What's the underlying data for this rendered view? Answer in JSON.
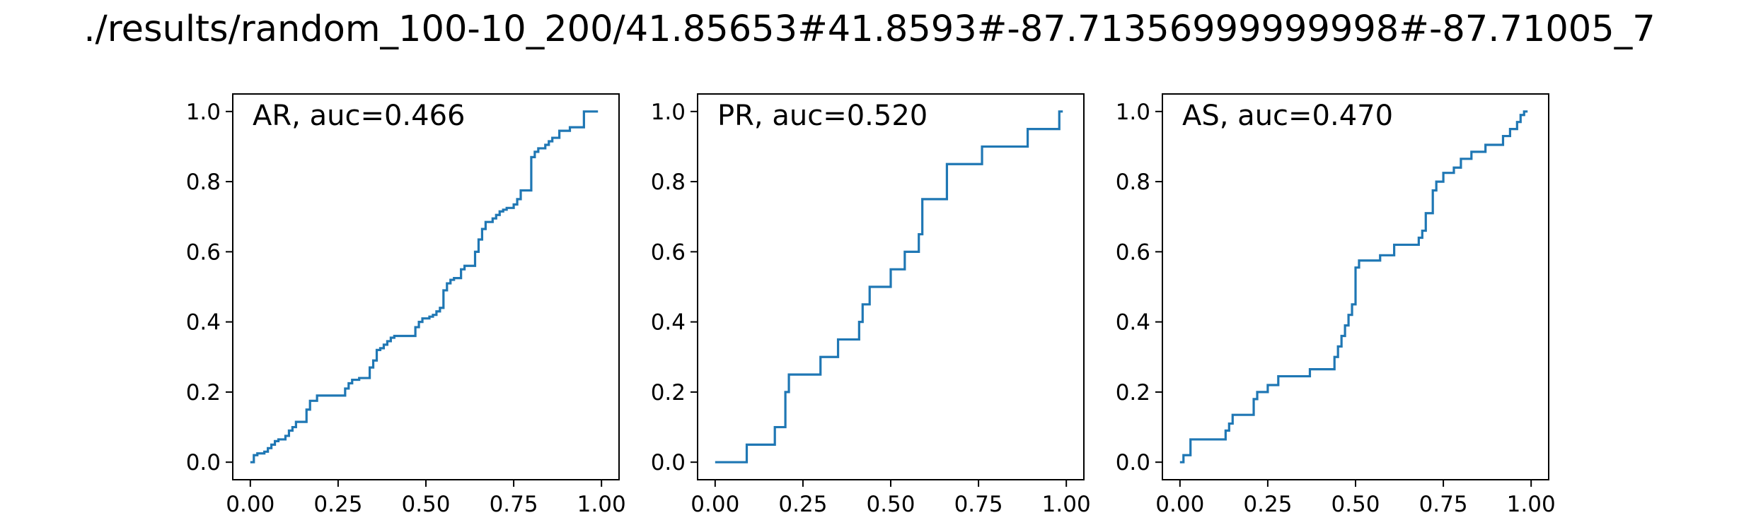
{
  "figure": {
    "suptitle": "./results/random_100-10_200/41.85653#41.8593#-87.71356999999998#-87.71005_7"
  },
  "style": {
    "line_color": "#1f77b4",
    "axes_color": "#000000",
    "background": "#ffffff"
  },
  "chart_data": [
    {
      "type": "line",
      "drawstyle": "steps-post",
      "annotation": "AR, auc=0.466",
      "legend_position": "top-left",
      "xlim": [
        -0.05,
        1.05
      ],
      "ylim": [
        -0.05,
        1.05
      ],
      "xticks": [
        0.0,
        0.25,
        0.5,
        0.75,
        1.0
      ],
      "xtick_labels": [
        "0.00",
        "0.25",
        "0.50",
        "0.75",
        "1.00"
      ],
      "yticks": [
        0.0,
        0.2,
        0.4,
        0.6,
        0.8,
        1.0
      ],
      "ytick_labels": [
        "0.0",
        "0.2",
        "0.4",
        "0.6",
        "0.8",
        "1.0"
      ],
      "series": [
        {
          "x": [
            0,
            0.01,
            0.02,
            0.04,
            0.05,
            0.06,
            0.07,
            0.08,
            0.1,
            0.11,
            0.12,
            0.13,
            0.16,
            0.17,
            0.19,
            0.27,
            0.28,
            0.29,
            0.31,
            0.34,
            0.35,
            0.36,
            0.37,
            0.38,
            0.39,
            0.4,
            0.41,
            0.46,
            0.47,
            0.48,
            0.49,
            0.5,
            0.51,
            0.52,
            0.53,
            0.54,
            0.55,
            0.56,
            0.57,
            0.58,
            0.6,
            0.61,
            0.62,
            0.64,
            0.65,
            0.66,
            0.67,
            0.69,
            0.7,
            0.71,
            0.72,
            0.73,
            0.75,
            0.76,
            0.77,
            0.8,
            0.81,
            0.82,
            0.84,
            0.85,
            0.86,
            0.88,
            0.91,
            0.95,
            0.99
          ],
          "y": [
            0,
            0.02,
            0.025,
            0.03,
            0.04,
            0.05,
            0.06,
            0.065,
            0.075,
            0.09,
            0.1,
            0.115,
            0.15,
            0.175,
            0.19,
            0.21,
            0.225,
            0.235,
            0.24,
            0.27,
            0.29,
            0.32,
            0.325,
            0.335,
            0.345,
            0.355,
            0.36,
            0.36,
            0.385,
            0.4,
            0.41,
            0.41,
            0.415,
            0.42,
            0.43,
            0.44,
            0.49,
            0.51,
            0.52,
            0.525,
            0.55,
            0.56,
            0.56,
            0.6,
            0.635,
            0.665,
            0.685,
            0.695,
            0.705,
            0.715,
            0.72,
            0.725,
            0.735,
            0.75,
            0.775,
            0.87,
            0.885,
            0.895,
            0.905,
            0.915,
            0.925,
            0.945,
            0.955,
            1.0,
            1.0
          ]
        }
      ]
    },
    {
      "type": "line",
      "drawstyle": "steps-post",
      "annotation": "PR, auc=0.520",
      "legend_position": "top-left",
      "xlim": [
        -0.05,
        1.05
      ],
      "ylim": [
        -0.05,
        1.05
      ],
      "xticks": [
        0.0,
        0.25,
        0.5,
        0.75,
        1.0
      ],
      "xtick_labels": [
        "0.00",
        "0.25",
        "0.50",
        "0.75",
        "1.00"
      ],
      "yticks": [
        0.0,
        0.2,
        0.4,
        0.6,
        0.8,
        1.0
      ],
      "ytick_labels": [
        "0.0",
        "0.2",
        "0.4",
        "0.6",
        "0.8",
        "1.0"
      ],
      "series": [
        {
          "x": [
            0,
            0.09,
            0.17,
            0.2,
            0.21,
            0.3,
            0.35,
            0.41,
            0.42,
            0.44,
            0.5,
            0.54,
            0.58,
            0.59,
            0.66,
            0.76,
            0.89,
            0.98,
            0.99
          ],
          "y": [
            0,
            0.05,
            0.1,
            0.2,
            0.25,
            0.3,
            0.35,
            0.4,
            0.45,
            0.5,
            0.55,
            0.6,
            0.65,
            0.75,
            0.85,
            0.9,
            0.95,
            1.0,
            1.0
          ]
        }
      ]
    },
    {
      "type": "line",
      "drawstyle": "steps-post",
      "annotation": "AS, auc=0.470",
      "legend_position": "top-left",
      "xlim": [
        -0.05,
        1.05
      ],
      "ylim": [
        -0.05,
        1.05
      ],
      "xticks": [
        0.0,
        0.25,
        0.5,
        0.75,
        1.0
      ],
      "xtick_labels": [
        "0.00",
        "0.25",
        "0.50",
        "0.75",
        "1.00"
      ],
      "yticks": [
        0.0,
        0.2,
        0.4,
        0.6,
        0.8,
        1.0
      ],
      "ytick_labels": [
        "0.0",
        "0.2",
        "0.4",
        "0.6",
        "0.8",
        "1.0"
      ],
      "series": [
        {
          "x": [
            0,
            0.01,
            0.03,
            0.13,
            0.14,
            0.15,
            0.21,
            0.22,
            0.25,
            0.28,
            0.37,
            0.44,
            0.45,
            0.46,
            0.47,
            0.48,
            0.49,
            0.5,
            0.51,
            0.57,
            0.61,
            0.68,
            0.69,
            0.7,
            0.72,
            0.73,
            0.75,
            0.78,
            0.8,
            0.83,
            0.87,
            0.92,
            0.94,
            0.96,
            0.97,
            0.98,
            0.99
          ],
          "y": [
            0,
            0.02,
            0.065,
            0.09,
            0.11,
            0.135,
            0.18,
            0.2,
            0.22,
            0.245,
            0.265,
            0.3,
            0.33,
            0.36,
            0.39,
            0.42,
            0.45,
            0.555,
            0.575,
            0.59,
            0.62,
            0.64,
            0.66,
            0.71,
            0.775,
            0.8,
            0.825,
            0.84,
            0.865,
            0.885,
            0.905,
            0.93,
            0.95,
            0.97,
            0.99,
            1.0,
            1.0
          ]
        }
      ]
    }
  ]
}
